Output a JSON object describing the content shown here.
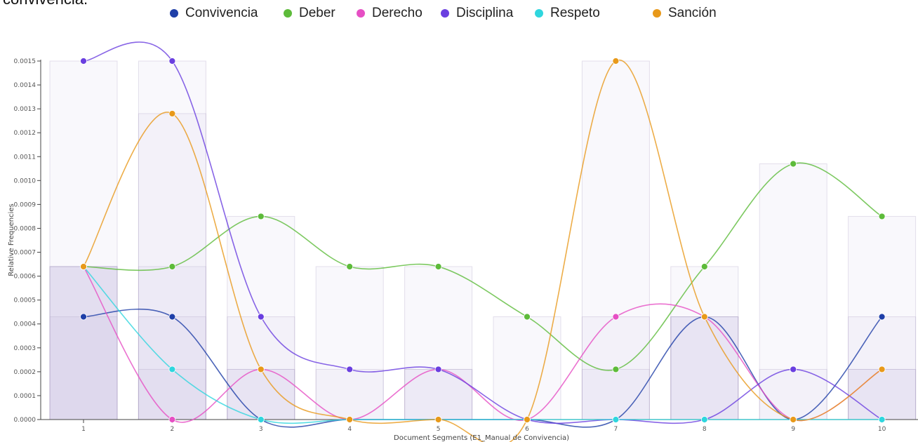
{
  "top_fragment": "convivencia.",
  "colors": {
    "Convivencia": "#1f3fa8",
    "Deber": "#5dbb3a",
    "Derecho": "#e64fc4",
    "Disciplina": "#6a3fe0",
    "Respeto": "#2fd6de",
    "Sanción": "#e8991a"
  },
  "legend": [
    "Convivencia",
    "Deber",
    "Derecho",
    "Disciplina",
    "Respeto",
    "Sanción"
  ],
  "chart_data": {
    "type": "line",
    "x": [
      1,
      2,
      3,
      4,
      5,
      6,
      7,
      8,
      9,
      10
    ],
    "xlabel": "Document Segments (E1_Manual de Convivencia)",
    "ylabel": "Relative Frequencies",
    "ylim": [
      0,
      0.0015
    ],
    "yticks": [
      "0.0000",
      "0.0001",
      "0.0002",
      "0.0003",
      "0.0004",
      "0.0005",
      "0.0006",
      "0.0007",
      "0.0008",
      "0.0009",
      "0.0010",
      "0.0011",
      "0.0012",
      "0.0013",
      "0.0014",
      "0.0015"
    ],
    "series": [
      {
        "name": "Convivencia",
        "values": [
          0.00043,
          0.00043,
          0,
          0,
          0,
          0,
          0,
          0.00043,
          0,
          0.00043
        ]
      },
      {
        "name": "Deber",
        "values": [
          0.00064,
          0.00064,
          0.00085,
          0.00064,
          0.00064,
          0.00043,
          0.00021,
          0.00064,
          0.00107,
          0.00085
        ]
      },
      {
        "name": "Derecho",
        "values": [
          0.00064,
          0,
          0.00021,
          0,
          0.00021,
          0,
          0.00043,
          0.00043,
          0,
          0.00021
        ]
      },
      {
        "name": "Disciplina",
        "values": [
          0.0015,
          0.0015,
          0.00043,
          0.00021,
          0.00021,
          0,
          0,
          0,
          0.00021,
          0
        ]
      },
      {
        "name": "Respeto",
        "values": [
          0.00064,
          0.00021,
          0,
          0,
          0,
          0,
          0,
          0,
          0,
          0
        ]
      },
      {
        "name": "Sanción",
        "values": [
          0.00064,
          0.00128,
          0.00021,
          0,
          0,
          0,
          0.0015,
          0.00043,
          0,
          0.00021
        ]
      }
    ]
  }
}
